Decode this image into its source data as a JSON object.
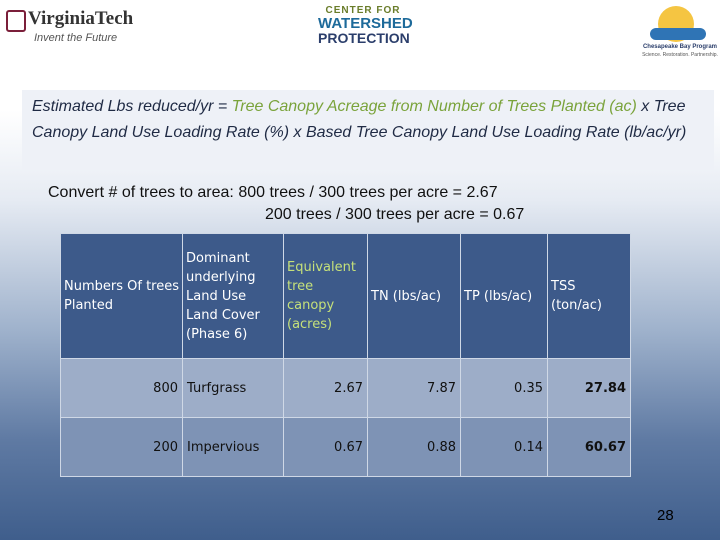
{
  "logos": {
    "vt": {
      "name": "VirginiaTech",
      "tagline": "Invent the Future"
    },
    "cwp": {
      "line1": "CENTER FOR",
      "line2": "WATERSHED",
      "line3": "PROTECTION"
    },
    "cbp": {
      "name": "Chesapeake Bay Program",
      "tagline": "Science. Restoration. Partnership."
    }
  },
  "formula": {
    "lead": "Estimated Lbs reduced/yr  = ",
    "green": "Tree Canopy Acreage from Number of Trees Planted (ac)",
    "rest": " x Tree Canopy Land Use Loading Rate (%)  x Based Tree Canopy Land Use Loading Rate (lb/ac/yr)"
  },
  "convert": {
    "line1": "Convert # of trees to area: 800 trees / 300 trees per acre = 2.67",
    "line2": "200 trees / 300 trees per acre = 0.67"
  },
  "table": {
    "headers": [
      "Numbers Of trees Planted",
      "Dominant underlying Land Use Land Cover (Phase 6)",
      "Equivalent tree canopy (acres)",
      "TN (lbs/ac)",
      "TP (lbs/ac)",
      "TSS (ton/ac)"
    ],
    "rows": [
      {
        "trees": "800",
        "land_use": "Turfgrass",
        "acres": "2.67",
        "tn": "7.87",
        "tp": "0.35",
        "tss": "27.84"
      },
      {
        "trees": "200",
        "land_use": "Impervious",
        "acres": "0.67",
        "tn": "0.88",
        "tp": "0.14",
        "tss": "60.67"
      }
    ]
  },
  "page_number": "28",
  "colors": {
    "accent_green": "#7aa33b",
    "header_blue": "#3d5a8a"
  }
}
